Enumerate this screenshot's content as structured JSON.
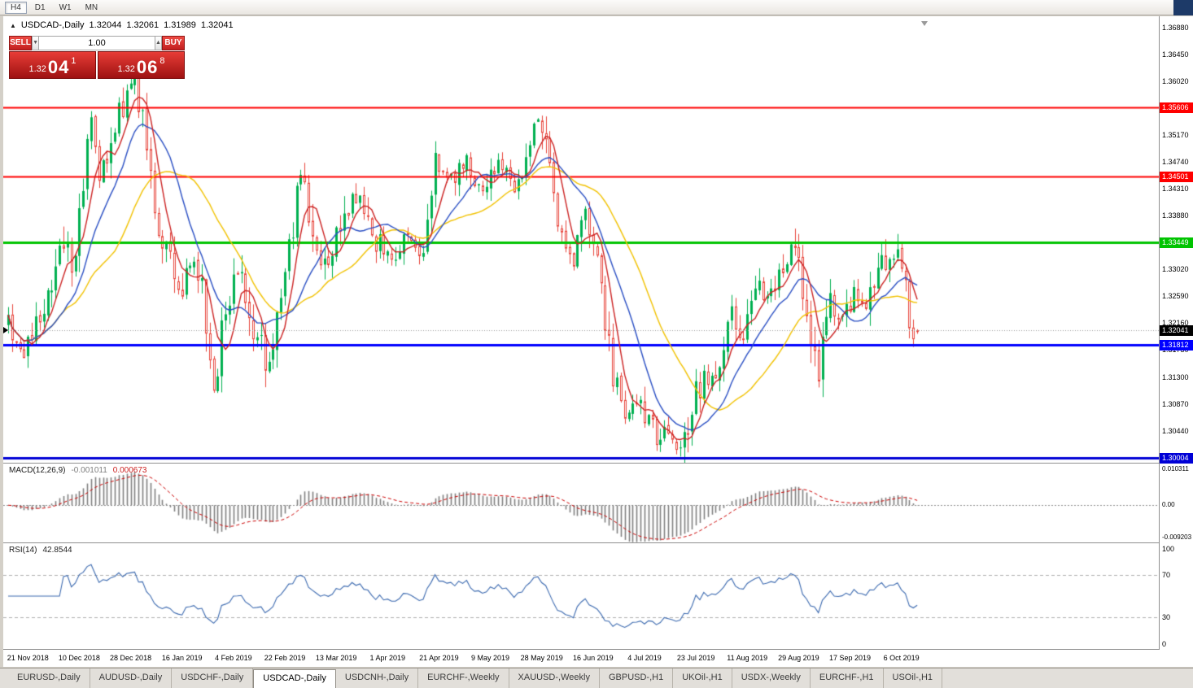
{
  "toolbar": {
    "timeframes": [
      "H4",
      "D1",
      "W1",
      "MN"
    ],
    "active": "H4"
  },
  "chart_header": {
    "collapse_icon": "▲",
    "title": "USDCAD-,Daily",
    "open": "1.32044",
    "high": "1.32061",
    "low": "1.31989",
    "close": "1.32041"
  },
  "trade_panel": {
    "sell_label": "SELL",
    "buy_label": "BUY",
    "volume": "1.00",
    "spinner_down_icon": "▼",
    "spinner_up_icon": "▲",
    "sell_price": {
      "prefix": "1.32",
      "big": "04",
      "sup": "1"
    },
    "buy_price": {
      "prefix": "1.32",
      "big": "06",
      "sup": "8"
    }
  },
  "price_scale": {
    "ticks": [
      "1.36880",
      "1.36450",
      "1.36020",
      "1.35170",
      "1.34740",
      "1.34310",
      "1.33880",
      "1.33020",
      "1.32590",
      "1.32160",
      "1.31730",
      "1.31300",
      "1.30870",
      "1.30440"
    ],
    "level_labels": [
      {
        "label": "1.35606",
        "bg": "#ff0000"
      },
      {
        "label": "1.34501",
        "bg": "#ff0000"
      },
      {
        "label": "1.33449",
        "bg": "#00c400"
      },
      {
        "label": "1.31812",
        "bg": "#0000ff"
      },
      {
        "label": "1.30004",
        "bg": "#0000d6"
      }
    ],
    "current_price": {
      "label": "1.32041",
      "bg": "#000000"
    }
  },
  "macd_panel": {
    "label": "MACD(12,26,9)",
    "macd_value": "-0.001011",
    "signal_value": "0.000673",
    "scale": [
      "0.010311",
      "0.00",
      "-0.009203"
    ]
  },
  "rsi_panel": {
    "label": "RSI(14)",
    "value": "42.8544",
    "scale": [
      "100",
      "70",
      "30",
      "0"
    ]
  },
  "time_axis": {
    "labels": [
      "21 Nov 2018",
      "10 Dec 2018",
      "28 Dec 2018",
      "16 Jan 2019",
      "4 Feb 2019",
      "22 Feb 2019",
      "13 Mar 2019",
      "1 Apr 2019",
      "21 Apr 2019",
      "9 May 2019",
      "28 May 2019",
      "16 Jun 2019",
      "4 Jul 2019",
      "23 Jul 2019",
      "11 Aug 2019",
      "29 Aug 2019",
      "17 Sep 2019",
      "6 Oct 2019"
    ]
  },
  "tab_bar": {
    "tabs": [
      "EURUSD-,Daily",
      "AUDUSD-,Daily",
      "USDCHF-,Daily",
      "USDCAD-,Daily",
      "USDCNH-,Daily",
      "EURCHF-,Weekly",
      "XAUUSD-,Weekly",
      "GBPUSD-,H1",
      "UKOil-,H1",
      "USDX-,Weekly",
      "EURCHF-,H1",
      "USOil-,H1"
    ],
    "active_index": 3
  },
  "chart_data": {
    "type": "candlestick",
    "symbol": "USDCAD-",
    "timeframe": "Daily",
    "title": "USDCAD-,Daily",
    "visible_range": {
      "start": "21 Nov 2018",
      "end": "Oct 2019"
    },
    "price_axis": {
      "top": 1.3706,
      "bottom": 1.2993
    },
    "candle_count": 231,
    "first_date_label_index": 5,
    "date_label_step": 13,
    "ohlc_last": {
      "open": 1.32044,
      "high": 1.32061,
      "low": 1.31989,
      "close": 1.32041
    },
    "bid_line": 1.32041,
    "close_path_anchors": [
      [
        0,
        1.3215
      ],
      [
        3,
        1.3165
      ],
      [
        9,
        1.3235
      ],
      [
        13,
        1.3355
      ],
      [
        16,
        1.33
      ],
      [
        19,
        1.344
      ],
      [
        21,
        1.3545
      ],
      [
        23,
        1.344
      ],
      [
        27,
        1.353
      ],
      [
        31,
        1.36
      ],
      [
        33,
        1.3575
      ],
      [
        36,
        1.345
      ],
      [
        39,
        1.3345
      ],
      [
        43,
        1.3265
      ],
      [
        46,
        1.3315
      ],
      [
        49,
        1.3285
      ],
      [
        52,
        1.3105
      ],
      [
        55,
        1.3245
      ],
      [
        58,
        1.33
      ],
      [
        62,
        1.3215
      ],
      [
        66,
        1.3145
      ],
      [
        70,
        1.33
      ],
      [
        74,
        1.345
      ],
      [
        78,
        1.334
      ],
      [
        81,
        1.33
      ],
      [
        85,
        1.339
      ],
      [
        89,
        1.343
      ],
      [
        93,
        1.335
      ],
      [
        97,
        1.332
      ],
      [
        101,
        1.336
      ],
      [
        105,
        1.333
      ],
      [
        108,
        1.347
      ],
      [
        112,
        1.345
      ],
      [
        116,
        1.348
      ],
      [
        120,
        1.343
      ],
      [
        124,
        1.347
      ],
      [
        128,
        1.3435
      ],
      [
        131,
        1.3455
      ],
      [
        134,
        1.354
      ],
      [
        137,
        1.348
      ],
      [
        140,
        1.335
      ],
      [
        143,
        1.332
      ],
      [
        146,
        1.339
      ],
      [
        149,
        1.331
      ],
      [
        153,
        1.313
      ],
      [
        156,
        1.307
      ],
      [
        160,
        1.3085
      ],
      [
        164,
        1.303
      ],
      [
        167,
        1.3048
      ],
      [
        170,
        1.3022
      ],
      [
        173,
        1.308
      ],
      [
        176,
        1.313
      ],
      [
        179,
        1.311
      ],
      [
        183,
        1.323
      ],
      [
        186,
        1.32
      ],
      [
        189,
        1.329
      ],
      [
        192,
        1.326
      ],
      [
        195,
        1.33
      ],
      [
        198,
        1.334
      ],
      [
        200,
        1.331
      ],
      [
        203,
        1.318
      ],
      [
        205,
        1.314
      ],
      [
        208,
        1.326
      ],
      [
        211,
        1.322
      ],
      [
        214,
        1.327
      ],
      [
        217,
        1.323
      ],
      [
        220,
        1.329
      ],
      [
        223,
        1.333
      ],
      [
        225,
        1.3338
      ],
      [
        227,
        1.327
      ],
      [
        229,
        1.3185
      ],
      [
        230,
        1.32041
      ]
    ],
    "horizontal_levels": [
      {
        "value": 1.35606,
        "color": "#ff0000",
        "width": 2
      },
      {
        "value": 1.34501,
        "color": "#ff0000",
        "width": 2
      },
      {
        "value": 1.33449,
        "color": "#00c400",
        "width": 3
      },
      {
        "value": 1.31812,
        "color": "#0000ff",
        "width": 3
      },
      {
        "value": 1.30004,
        "color": "#0000d6",
        "width": 3
      }
    ],
    "moving_averages": [
      {
        "period": 28,
        "color": "#f2c200"
      },
      {
        "period": 14,
        "color": "#2a4fc4"
      },
      {
        "period": 6,
        "color": "#cc2222"
      }
    ],
    "colors": {
      "up": "#00b050",
      "down": "#e8453c",
      "background": "#ffffff"
    },
    "macd": {
      "fast": 12,
      "slow": 26,
      "signal": 9,
      "current": -0.001011,
      "current_signal": 0.000673,
      "window_max": 0.010311,
      "window_min": -0.009203,
      "histogram_color": "#808080",
      "signal_color": "#cc0000"
    },
    "rsi": {
      "period": 14,
      "current": 42.8544,
      "levels": [
        70,
        30
      ],
      "line_color": "#3c6ab0",
      "range": [
        0,
        100
      ]
    },
    "seed": 20191018
  }
}
